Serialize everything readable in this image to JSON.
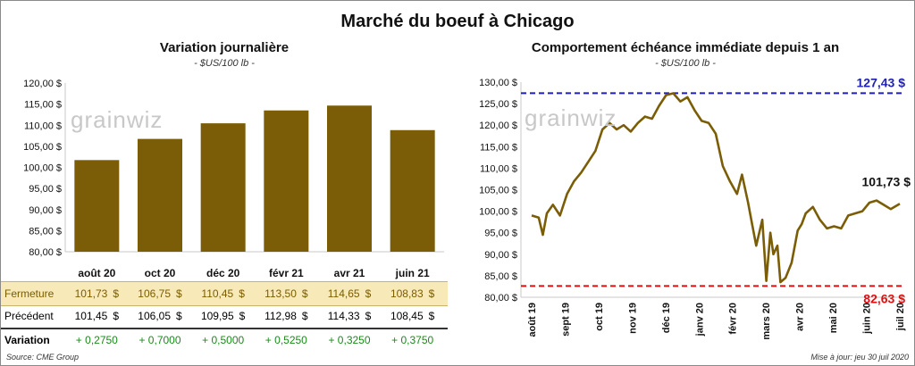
{
  "title": "Marché du boeuf à Chicago",
  "watermark": "grainwiz",
  "source": "Source: CME Group",
  "updated": "Mise à jour: jeu 30 juil 2020",
  "colors": {
    "bar": "#7a5d06",
    "line": "#7a5d06",
    "high_line": "#1f1fb4",
    "low_line": "#e01010",
    "fermeture_bg": "#f7e9b8",
    "variation_positive": "#1a8a1a"
  },
  "chart_data": [
    {
      "type": "bar",
      "title": "Variation journalière",
      "subtitle": "- $US/100 lb -",
      "categories": [
        "août 20",
        "oct 20",
        "déc 20",
        "févr 21",
        "avr 21",
        "juin 21"
      ],
      "values": [
        101.73,
        106.75,
        110.45,
        113.5,
        114.65,
        108.83
      ],
      "ylim": [
        80,
        120
      ],
      "yticks": [
        "80,00 $",
        "85,00 $",
        "90,00 $",
        "95,00 $",
        "100,00 $",
        "105,00 $",
        "110,00 $",
        "115,00 $",
        "120,00 $"
      ],
      "grid": false
    },
    {
      "type": "line",
      "title": "Comportement  échéance immédiate depuis 1 an",
      "subtitle": "- $US/100 lb -",
      "ylim": [
        80,
        130
      ],
      "yticks": [
        "80,00 $",
        "85,00 $",
        "90,00 $",
        "95,00 $",
        "100,00 $",
        "105,00 $",
        "110,00 $",
        "115,00 $",
        "120,00 $",
        "125,00 $",
        "130,00 $"
      ],
      "xticks": [
        "août 19",
        "sept 19",
        "oct 19",
        "nov 19",
        "déc 19",
        "janv 20",
        "févr 20",
        "mars 20",
        "avr 20",
        "mai 20",
        "juin 20",
        "juil 20"
      ],
      "x": [
        "2019-08-01",
        "2019-08-08",
        "2019-08-12",
        "2019-08-16",
        "2019-08-22",
        "2019-08-29",
        "2019-09-05",
        "2019-09-12",
        "2019-09-19",
        "2019-09-26",
        "2019-10-03",
        "2019-10-10",
        "2019-10-17",
        "2019-10-24",
        "2019-10-31",
        "2019-11-07",
        "2019-11-14",
        "2019-11-21",
        "2019-11-28",
        "2019-12-05",
        "2019-12-12",
        "2019-12-19",
        "2019-12-26",
        "2020-01-02",
        "2020-01-09",
        "2020-01-16",
        "2020-01-23",
        "2020-01-30",
        "2020-02-06",
        "2020-02-13",
        "2020-02-20",
        "2020-02-25",
        "2020-03-02",
        "2020-03-06",
        "2020-03-10",
        "2020-03-16",
        "2020-03-20",
        "2020-03-24",
        "2020-03-27",
        "2020-03-31",
        "2020-04-03",
        "2020-04-08",
        "2020-04-14",
        "2020-04-20",
        "2020-04-24",
        "2020-04-28",
        "2020-05-05",
        "2020-05-12",
        "2020-05-19",
        "2020-05-26",
        "2020-06-02",
        "2020-06-09",
        "2020-06-16",
        "2020-06-23",
        "2020-06-30",
        "2020-07-07",
        "2020-07-14",
        "2020-07-21",
        "2020-07-30"
      ],
      "values": [
        99.0,
        98.5,
        94.5,
        99.5,
        101.5,
        99.0,
        104.0,
        107.0,
        109.0,
        111.5,
        114.0,
        119.0,
        120.5,
        119.0,
        120.0,
        118.5,
        120.5,
        122.0,
        121.5,
        124.5,
        127.0,
        127.4,
        125.5,
        126.5,
        123.5,
        121.0,
        120.5,
        118.0,
        110.5,
        107.0,
        104.0,
        108.5,
        102.0,
        97.0,
        92.0,
        98.0,
        83.8,
        95.0,
        90.0,
        92.0,
        83.5,
        84.5,
        88.0,
        95.5,
        97.0,
        99.5,
        101.0,
        98.0,
        96.0,
        96.5,
        96.0,
        99.0,
        99.5,
        100.0,
        102.0,
        102.5,
        101.5,
        100.5,
        101.73
      ],
      "high": {
        "value": 127.43,
        "label": "127,43 $"
      },
      "low": {
        "value": 82.63,
        "label": "82,63 $"
      },
      "last": {
        "value": 101.73,
        "label": "101,73 $"
      },
      "grid": false
    }
  ],
  "table": {
    "rows": [
      {
        "label": "Fermeture",
        "values": [
          "101,73",
          "106,75",
          "110,45",
          "113,50",
          "114,65",
          "108,83"
        ],
        "unit": "$"
      },
      {
        "label": "Précédent",
        "values": [
          "101,45",
          "106,05",
          "109,95",
          "112,98",
          "114,33",
          "108,45"
        ],
        "unit": "$"
      },
      {
        "label": "Variation",
        "values": [
          "+ 0,2750",
          "+ 0,7000",
          "+ 0,5000",
          "+ 0,5250",
          "+ 0,3250",
          "+ 0,3750"
        ],
        "unit": ""
      }
    ]
  }
}
